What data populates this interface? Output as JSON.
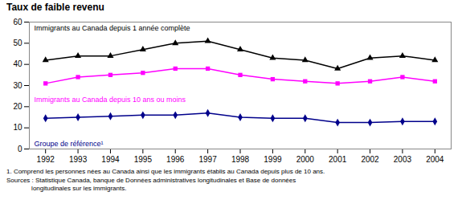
{
  "chart_data": {
    "type": "line",
    "title": "Taux de faible revenu",
    "x": [
      1992,
      1993,
      1994,
      1995,
      1996,
      1997,
      1998,
      1999,
      2000,
      2001,
      2002,
      2003,
      2004
    ],
    "series": [
      {
        "name": "Immigrants au Canada depuis 1 année complète",
        "color": "#000000",
        "marker": "triangle",
        "values": [
          42,
          44,
          44,
          47,
          50,
          51,
          47,
          43,
          42,
          38,
          43,
          44,
          42
        ]
      },
      {
        "name": "Immigrants au Canada depuis 10 ans ou moins",
        "color": "#FF00FF",
        "marker": "square",
        "values": [
          31,
          34,
          35,
          36,
          38,
          38,
          35,
          33,
          32,
          31,
          32,
          34,
          32
        ]
      },
      {
        "name": "Groupe de référence¹",
        "color": "#00008B",
        "marker": "diamond",
        "values": [
          14.5,
          15,
          15.5,
          16,
          16,
          17,
          15,
          14.5,
          14.5,
          12.5,
          12.5,
          13,
          13
        ]
      }
    ],
    "xlim": [
      1991.5,
      2004.5
    ],
    "xticks": [
      1992,
      1993,
      1994,
      1995,
      1996,
      1997,
      1998,
      1999,
      2000,
      2001,
      2002,
      2003,
      2004
    ],
    "ylim": [
      0,
      60
    ],
    "yticks": [
      0,
      10,
      20,
      30,
      40,
      50,
      60
    ],
    "footnotes": [
      "1. Comprend les personnes nées au Canada ainsi que les immigrants établis au Canada depuis plus de 10 ans.",
      "Sources : Statistique Canada, banque de Données administratives longitudinales et Base de données",
      "              longitudinales sur les immigrants."
    ]
  }
}
